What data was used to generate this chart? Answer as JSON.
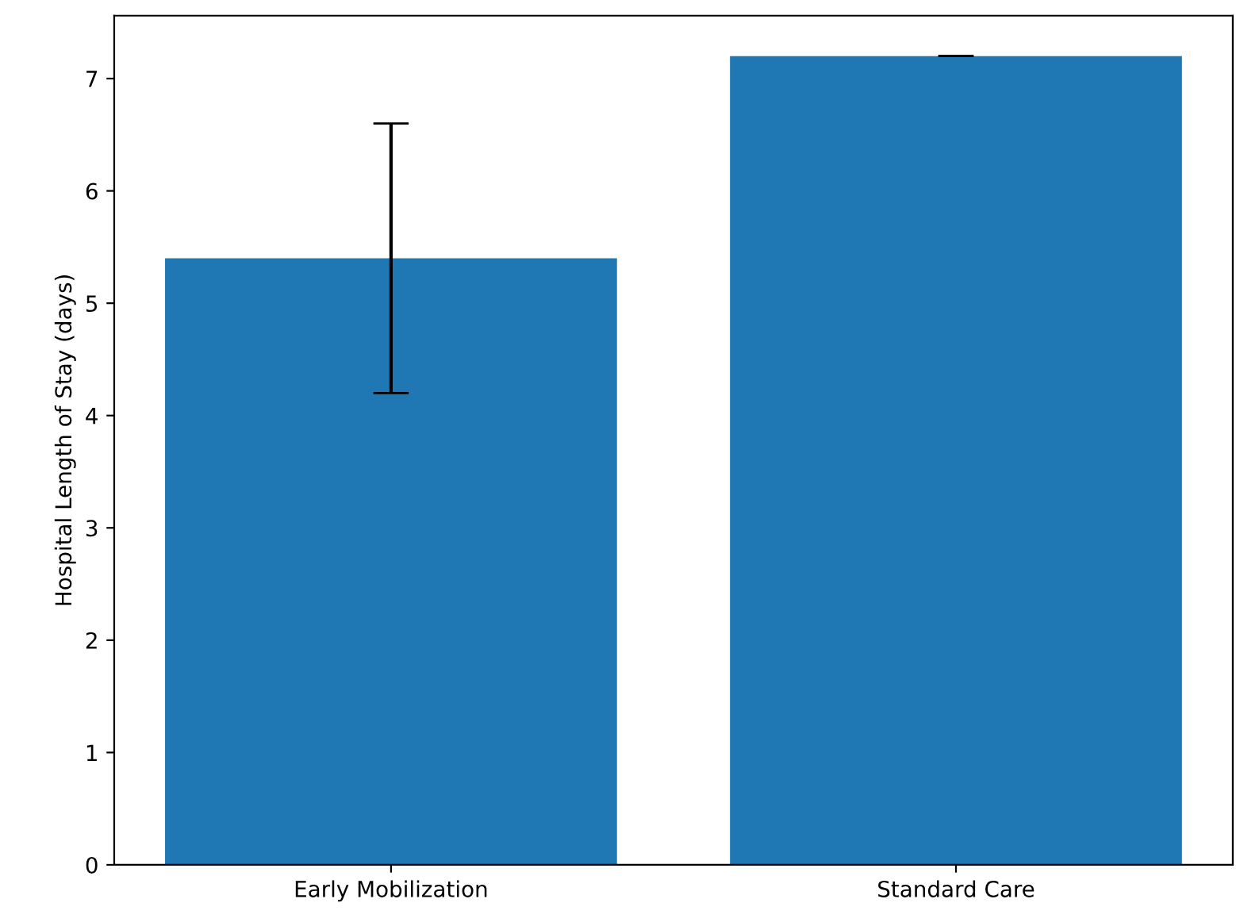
{
  "chart_data": {
    "type": "bar",
    "ylabel": "Hospital Length of Stay (days)",
    "categories": [
      "Early Mobilization",
      "Standard Care"
    ],
    "values": [
      5.4,
      7.2
    ],
    "errors": [
      1.2,
      0
    ],
    "color": "#1f77b4",
    "ylim": [
      0,
      7.56
    ],
    "yticks": [
      0,
      1,
      2,
      3,
      4,
      5,
      6,
      7
    ],
    "grid": false
  }
}
